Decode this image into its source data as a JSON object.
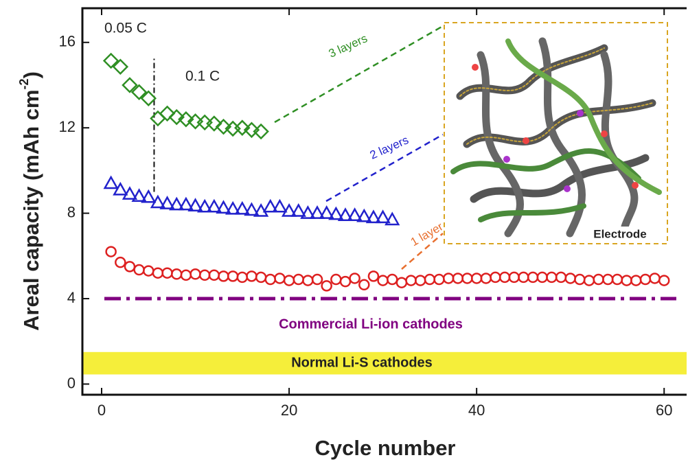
{
  "chart_data": {
    "type": "scatter",
    "x_label": "Cycle number",
    "y_label": {
      "text": "Areal capacity (mAh cm",
      "superscript": "-2",
      "suffix": ")"
    },
    "xlim": [
      -2.05,
      62.4
    ],
    "ylim": [
      -0.5,
      17.6
    ],
    "xticks": [
      0,
      20,
      40,
      60
    ],
    "yticks": [
      0,
      4,
      8,
      12,
      16
    ],
    "series": [
      {
        "name": "3 layers",
        "marker": "diamond",
        "color": "#2f8f24",
        "x": [
          1,
          2,
          3,
          4,
          5,
          6,
          7,
          8,
          9,
          10,
          11,
          12,
          13,
          14,
          15,
          16,
          17
        ],
        "values": [
          15.14,
          14.86,
          14.0,
          13.67,
          13.38,
          12.44,
          12.67,
          12.5,
          12.4,
          12.3,
          12.25,
          12.2,
          12.05,
          11.96,
          12.0,
          11.9,
          11.83
        ]
      },
      {
        "name": "2 layers",
        "marker": "triangle",
        "color": "#2222cc",
        "x": [
          1,
          2,
          3,
          4,
          5,
          6,
          7,
          8,
          9,
          10,
          11,
          12,
          13,
          14,
          15,
          16,
          17,
          18,
          19,
          20,
          21,
          22,
          23,
          24,
          25,
          26,
          27,
          28,
          29,
          30,
          31
        ],
        "values": [
          9.4,
          9.1,
          8.9,
          8.8,
          8.75,
          8.5,
          8.45,
          8.4,
          8.4,
          8.35,
          8.3,
          8.3,
          8.25,
          8.2,
          8.2,
          8.15,
          8.1,
          8.3,
          8.3,
          8.1,
          8.1,
          8.0,
          8.0,
          8.0,
          7.95,
          7.9,
          7.9,
          7.85,
          7.8,
          7.8,
          7.7
        ]
      },
      {
        "name": "1 layer",
        "marker": "circle",
        "color": "#dd2020",
        "x": [
          1,
          2,
          3,
          4,
          5,
          6,
          7,
          8,
          9,
          10,
          11,
          12,
          13,
          14,
          15,
          16,
          17,
          18,
          19,
          20,
          21,
          22,
          23,
          24,
          25,
          26,
          27,
          28,
          29,
          30,
          31,
          32,
          33,
          34,
          35,
          36,
          37,
          38,
          39,
          40,
          41,
          42,
          43,
          44,
          45,
          46,
          47,
          48,
          49,
          50,
          51,
          52,
          53,
          54,
          55,
          56,
          57,
          58,
          59,
          60
        ],
        "values": [
          6.2,
          5.7,
          5.5,
          5.35,
          5.3,
          5.2,
          5.2,
          5.15,
          5.1,
          5.15,
          5.1,
          5.1,
          5.05,
          5.05,
          5.0,
          5.05,
          5.0,
          4.9,
          4.95,
          4.85,
          4.9,
          4.85,
          4.9,
          4.6,
          4.9,
          4.8,
          4.95,
          4.65,
          5.05,
          4.85,
          4.9,
          4.75,
          4.85,
          4.85,
          4.9,
          4.9,
          4.95,
          4.95,
          4.95,
          4.95,
          4.95,
          5.0,
          5.0,
          5.0,
          5.0,
          5.0,
          5.0,
          5.0,
          5.0,
          4.95,
          4.9,
          4.85,
          4.9,
          4.9,
          4.9,
          4.85,
          4.85,
          4.9,
          4.95,
          4.85
        ]
      }
    ],
    "reference_line": {
      "label": "Commercial Li-ion cathodes",
      "value": 4,
      "color": "#800080"
    },
    "reference_band": {
      "label": "Normal Li-S cathodes",
      "range": [
        0.45,
        1.5
      ],
      "color": "#f5ee3a"
    },
    "rate_divider": {
      "x": 5.6,
      "range": [
        9.0,
        15.3
      ]
    },
    "rate_labels": [
      "0.05 C",
      "0.1 C"
    ],
    "inset_label": "Electrode"
  }
}
